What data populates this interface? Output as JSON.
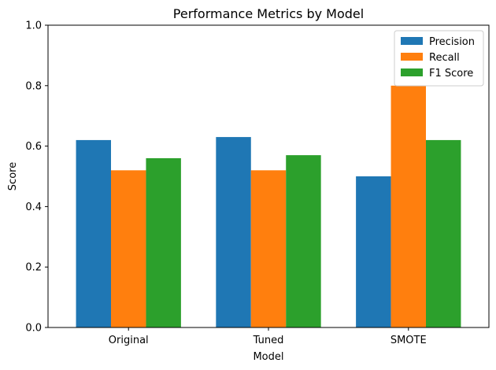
{
  "chart_data": {
    "type": "bar",
    "title": "Performance Metrics by Model",
    "xlabel": "Model",
    "ylabel": "Score",
    "categories": [
      "Original",
      "Tuned",
      "SMOTE"
    ],
    "series": [
      {
        "name": "Precision",
        "values": [
          0.62,
          0.63,
          0.5
        ],
        "color": "#1f77b4"
      },
      {
        "name": "Recall",
        "values": [
          0.52,
          0.52,
          0.8
        ],
        "color": "#ff7f0e"
      },
      {
        "name": "F1 Score",
        "values": [
          0.56,
          0.57,
          0.62
        ],
        "color": "#2ca02c"
      }
    ],
    "ylim": [
      0,
      1.0
    ],
    "yticks": [
      "0.0",
      "0.2",
      "0.4",
      "0.6",
      "0.8",
      "1.0"
    ],
    "grid": false,
    "legend_position": "top-right"
  }
}
